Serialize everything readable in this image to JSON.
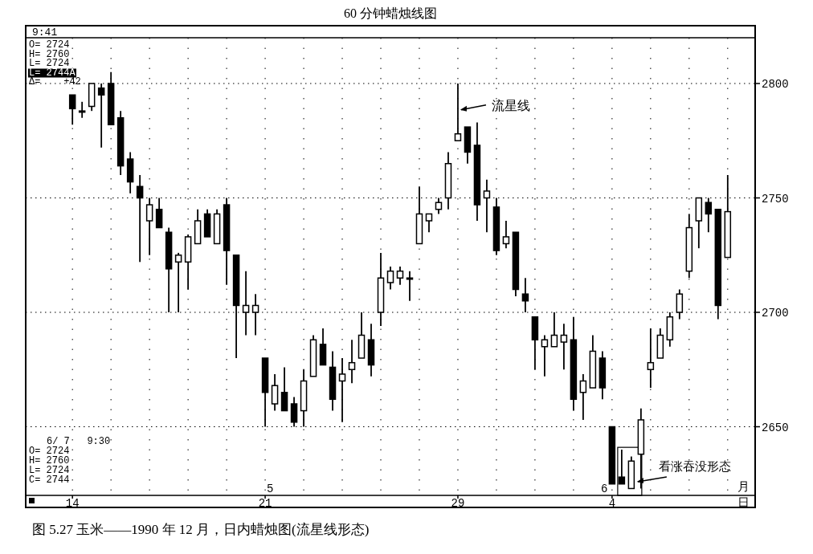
{
  "chart_data": {
    "type": "candlestick",
    "title": "60 分钟蜡烛线图",
    "categories": [
      "14",
      null,
      null,
      null,
      null,
      null,
      null,
      null,
      null,
      null,
      null,
      null,
      null,
      null,
      null,
      null,
      null,
      null,
      null,
      null,
      "21",
      null,
      null,
      null,
      null,
      null,
      null,
      null,
      null,
      null,
      null,
      null,
      null,
      null,
      null,
      null,
      null,
      null,
      null,
      null,
      "29",
      null,
      null,
      null,
      null,
      null,
      null,
      null,
      null,
      null,
      null,
      null,
      null,
      null,
      null,
      null,
      "4",
      null,
      null,
      null,
      null,
      null,
      null,
      null,
      null,
      null,
      null,
      null,
      null
    ],
    "ohlc": [
      [
        2795,
        2795,
        2782,
        2789
      ],
      [
        2788,
        2792,
        2785,
        2788
      ],
      [
        2790,
        2800,
        2788,
        2800
      ],
      [
        2798,
        2800,
        2772,
        2795
      ],
      [
        2800,
        2805,
        2782,
        2782
      ],
      [
        2785,
        2788,
        2760,
        2764
      ],
      [
        2767,
        2770,
        2752,
        2757
      ],
      [
        2755,
        2760,
        2722,
        2750
      ],
      [
        2740,
        2750,
        2725,
        2747
      ],
      [
        2745,
        2750,
        2737,
        2737
      ],
      [
        2735,
        2737,
        2700,
        2719
      ],
      [
        2722,
        2726,
        2700,
        2725
      ],
      [
        2722,
        2734,
        2710,
        2733
      ],
      [
        2730,
        2745,
        2730,
        2740
      ],
      [
        2743,
        2745,
        2733,
        2733
      ],
      [
        2730,
        2745,
        2730,
        2743
      ],
      [
        2747,
        2750,
        2712,
        2727
      ],
      [
        2725,
        2725,
        2680,
        2703
      ],
      [
        2700,
        2718,
        2690,
        2703
      ],
      [
        2700,
        2708,
        2690,
        2703
      ],
      [
        2680,
        2680,
        2650,
        2665
      ],
      [
        2660,
        2673,
        2657,
        2668
      ],
      [
        2665,
        2676,
        2657,
        2657
      ],
      [
        2660,
        2663,
        2650,
        2652
      ],
      [
        2657,
        2675,
        2650,
        2670
      ],
      [
        2672,
        2690,
        2672,
        2688
      ],
      [
        2686,
        2693,
        2677,
        2677
      ],
      [
        2676,
        2683,
        2657,
        2662
      ],
      [
        2670,
        2680,
        2652,
        2673
      ],
      [
        2675,
        2688,
        2669,
        2678
      ],
      [
        2680,
        2700,
        2680,
        2690
      ],
      [
        2688,
        2695,
        2672,
        2677
      ],
      [
        2700,
        2726,
        2694,
        2715
      ],
      [
        2713,
        2720,
        2710,
        2718
      ],
      [
        2715,
        2720,
        2712,
        2718
      ],
      [
        2715,
        2718,
        2705,
        2715
      ],
      [
        2730,
        2755,
        2730,
        2743
      ],
      [
        2740,
        2743,
        2735,
        2743
      ],
      [
        2745,
        2750,
        2743,
        2748
      ],
      [
        2750,
        2770,
        2745,
        2765
      ],
      [
        2775,
        2800,
        2775,
        2778
      ],
      [
        2781,
        2781,
        2765,
        2770
      ],
      [
        2773,
        2783,
        2740,
        2747
      ],
      [
        2750,
        2758,
        2735,
        2753
      ],
      [
        2746,
        2750,
        2725,
        2727
      ],
      [
        2730,
        2740,
        2728,
        2733
      ],
      [
        2735,
        2735,
        2707,
        2710
      ],
      [
        2708,
        2715,
        2700,
        2705
      ],
      [
        2698,
        2698,
        2675,
        2688
      ],
      [
        2685,
        2690,
        2672,
        2688
      ],
      [
        2685,
        2700,
        2685,
        2690
      ],
      [
        2687,
        2695,
        2675,
        2690
      ],
      [
        2688,
        2698,
        2657,
        2662
      ],
      [
        2665,
        2673,
        2653,
        2670
      ],
      [
        2667,
        2690,
        2667,
        2683
      ],
      [
        2680,
        2683,
        2662,
        2667
      ],
      [
        2650,
        2650,
        2625,
        2625
      ],
      [
        2628,
        2640,
        2625,
        2625
      ],
      [
        2623,
        2637,
        2623,
        2635
      ],
      [
        2638,
        2658,
        2623,
        2653
      ],
      [
        2675,
        2693,
        2667,
        2678
      ],
      [
        2680,
        2693,
        2680,
        2690
      ],
      [
        2688,
        2700,
        2685,
        2698
      ],
      [
        2700,
        2710,
        2697,
        2708
      ],
      [
        2718,
        2743,
        2715,
        2737
      ],
      [
        2740,
        2750,
        2728,
        2750
      ],
      [
        2748,
        2750,
        2735,
        2743
      ],
      [
        2745,
        2745,
        2697,
        2703
      ],
      [
        2724,
        2760,
        2724,
        2744
      ]
    ],
    "ylim": [
      2620,
      2820
    ],
    "yticks": [
      2650,
      2700,
      2750,
      2800
    ],
    "grid": true,
    "annotations": [
      "9:41",
      "O= 2724",
      "H= 2760",
      "L= 2724",
      "L= 2744A",
      "Δ=    +42",
      "6/ 7   9:30",
      "O= 2724",
      "H= 2760",
      "L= 2724",
      "C= 2744",
      "5",
      "6",
      "月",
      "日",
      "流星线",
      "看涨吞没形态",
      "图 5.27   玉米——1990 年 12 月，日内蜡烛图(流星线形态)"
    ]
  }
}
